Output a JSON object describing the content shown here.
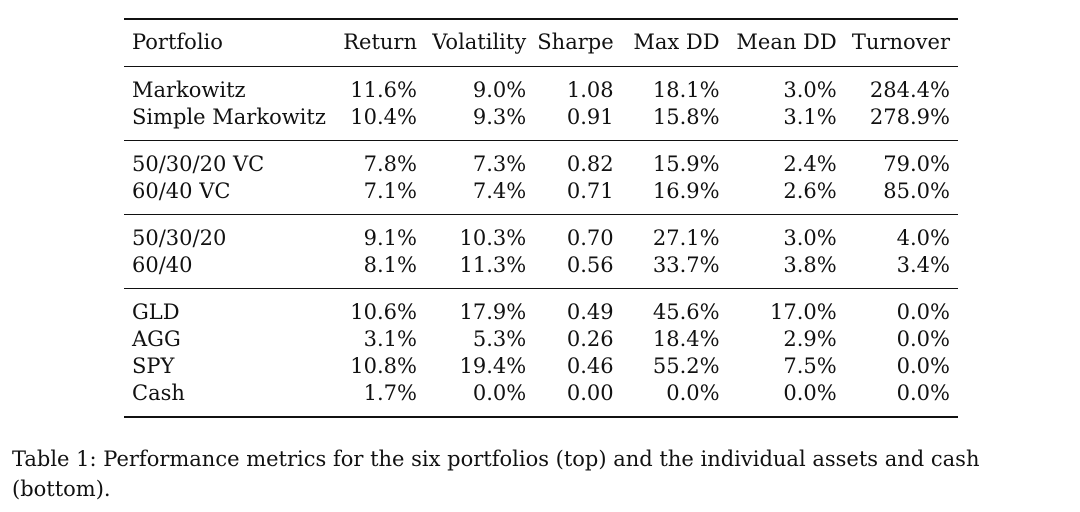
{
  "table": {
    "headers": [
      "Portfolio",
      "Return",
      "Volatility",
      "Sharpe",
      "Max DD",
      "Mean DD",
      "Turnover"
    ],
    "groups": [
      [
        [
          "Markowitz",
          "11.6%",
          "9.0%",
          "1.08",
          "18.1%",
          "3.0%",
          "284.4%"
        ],
        [
          "Simple Markowitz",
          "10.4%",
          "9.3%",
          "0.91",
          "15.8%",
          "3.1%",
          "278.9%"
        ]
      ],
      [
        [
          "50/30/20 VC",
          "7.8%",
          "7.3%",
          "0.82",
          "15.9%",
          "2.4%",
          "79.0%"
        ],
        [
          "60/40 VC",
          "7.1%",
          "7.4%",
          "0.71",
          "16.9%",
          "2.6%",
          "85.0%"
        ]
      ],
      [
        [
          "50/30/20",
          "9.1%",
          "10.3%",
          "0.70",
          "27.1%",
          "3.0%",
          "4.0%"
        ],
        [
          "60/40",
          "8.1%",
          "11.3%",
          "0.56",
          "33.7%",
          "3.8%",
          "3.4%"
        ]
      ],
      [
        [
          "GLD",
          "10.6%",
          "17.9%",
          "0.49",
          "45.6%",
          "17.0%",
          "0.0%"
        ],
        [
          "AGG",
          "3.1%",
          "5.3%",
          "0.26",
          "18.4%",
          "2.9%",
          "0.0%"
        ],
        [
          "SPY",
          "10.8%",
          "19.4%",
          "0.46",
          "55.2%",
          "7.5%",
          "0.0%"
        ],
        [
          "Cash",
          "1.7%",
          "0.0%",
          "0.00",
          "0.0%",
          "0.0%",
          "0.0%"
        ]
      ]
    ]
  },
  "caption": "Table 1: Performance metrics for the six portfolios (top) and the individual assets and cash (bottom)."
}
